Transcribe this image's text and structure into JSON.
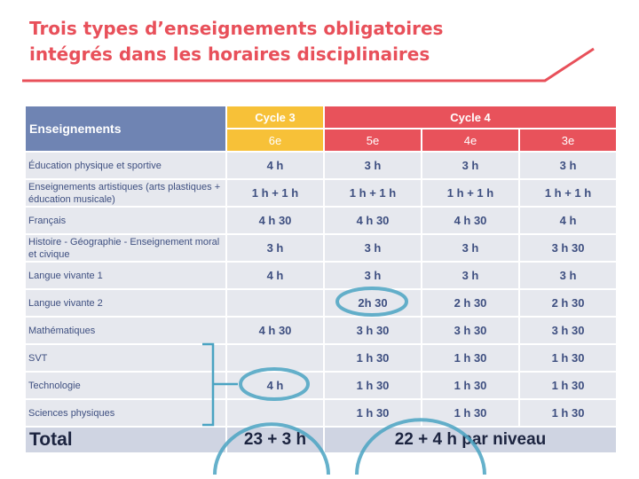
{
  "title": {
    "line1": "Trois types d’enseignements obligatoires",
    "line2": "intégrés dans les horaires disciplinaires"
  },
  "table": {
    "header_subject": "Enseignements",
    "cycle3": "Cycle 3",
    "cycle4": "Cycle 4",
    "levels": [
      "6e",
      "5e",
      "4e",
      "3e"
    ],
    "rows": [
      {
        "subject": "Éducation physique et sportive",
        "values": [
          "4 h",
          "3 h",
          "3 h",
          "3 h"
        ]
      },
      {
        "subject": "Enseignements artistiques (arts plastiques + éducation musicale)",
        "values": [
          "1 h + 1 h",
          "1 h + 1 h",
          "1 h + 1 h",
          "1 h + 1 h"
        ]
      },
      {
        "subject": "Français",
        "values": [
          "4 h 30",
          "4 h 30",
          "4 h 30",
          "4 h"
        ]
      },
      {
        "subject": "Histoire - Géographie - Enseignement moral et civique",
        "values": [
          "3 h",
          "3 h",
          "3 h",
          "3 h 30"
        ]
      },
      {
        "subject": "Langue vivante 1",
        "values": [
          "4 h",
          "3 h",
          "3 h",
          "3 h"
        ]
      },
      {
        "subject": "Langue vivante 2",
        "values": [
          "",
          "2h 30",
          "2 h 30",
          "2 h 30"
        ]
      },
      {
        "subject": "Mathématiques",
        "values": [
          "4 h 30",
          "3 h 30",
          "3 h 30",
          "3 h 30"
        ]
      },
      {
        "subject": "SVT",
        "values": [
          "",
          "1 h 30",
          "1 h 30",
          "1 h 30"
        ]
      },
      {
        "subject": "Technologie",
        "values": [
          "4 h",
          "1 h 30",
          "1 h 30",
          "1 h 30"
        ]
      },
      {
        "subject": "Sciences physiques",
        "values": [
          "",
          "1 h 30",
          "1 h 30",
          "1 h 30"
        ]
      }
    ],
    "total_label": "Total",
    "total_cycle3": "23 + 3 h",
    "total_cycle4": "22 + 4 h par niveau"
  },
  "colors": {
    "title": "#e8505a",
    "header_blue": "#6f84b3",
    "cycle3_yellow": "#f7c138",
    "cycle4_red": "#e8525b",
    "highlight_teal": "#4aa3c2"
  }
}
